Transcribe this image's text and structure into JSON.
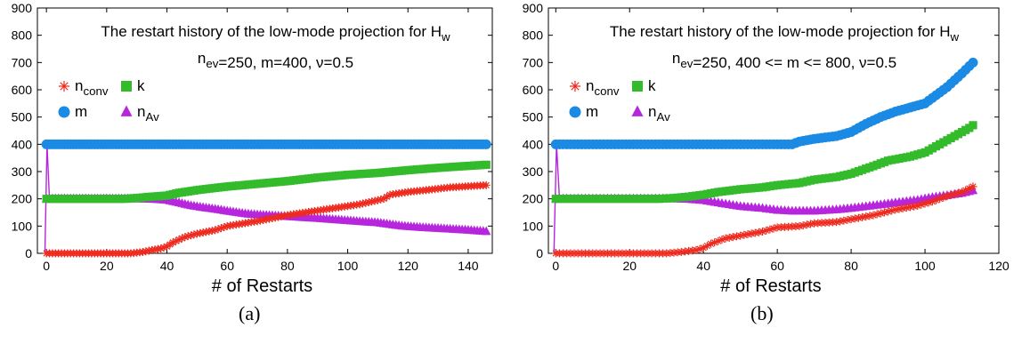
{
  "chart_data": [
    {
      "type": "line",
      "panel_label": "(a)",
      "title": "The restart history of the low-mode projection for H",
      "title_sub": "w",
      "params": {
        "line": "",
        "parts": [
          [
            "n",
            ""
          ],
          [
            "ev",
            "sub"
          ],
          [
            "=250,   m=400,  ",
            ""
          ],
          [
            "ν",
            ""
          ],
          [
            "=0.5",
            ""
          ]
        ]
      },
      "xlabel": "# of Restarts",
      "ylabel": "",
      "xlim": [
        -3,
        148
      ],
      "ylim": [
        0,
        900
      ],
      "xticks": [
        "0",
        "20",
        "40",
        "60",
        "80",
        "100",
        "120",
        "140"
      ],
      "xtick_values": [
        0,
        20,
        40,
        60,
        80,
        100,
        120,
        140
      ],
      "yticks": [
        "0",
        "100",
        "200",
        "300",
        "400",
        "500",
        "600",
        "700",
        "800",
        "900"
      ],
      "ytick_values": [
        0,
        100,
        200,
        300,
        400,
        500,
        600,
        700,
        800,
        900
      ],
      "legend": [
        {
          "key": "nconv",
          "base": "n",
          "sub": "conv",
          "marker": "star",
          "color": "#ee2a1e"
        },
        {
          "key": "k",
          "base": "k",
          "sub": "",
          "marker": "square",
          "color": "#33bb2b"
        },
        {
          "key": "m",
          "base": "m",
          "sub": "",
          "marker": "circle",
          "color": "#1a8ae4"
        },
        {
          "key": "nAv",
          "base": "n",
          "sub": "Av",
          "marker": "triangle",
          "color": "#b626dc"
        }
      ],
      "x_last": 146,
      "series": [
        {
          "name": "n_conv",
          "key": "nconv",
          "points": [
            [
              0,
              0
            ],
            [
              1,
              0
            ],
            [
              28,
              0
            ],
            [
              32,
              5
            ],
            [
              35,
              12
            ],
            [
              38,
              18
            ],
            [
              40,
              25
            ],
            [
              42,
              40
            ],
            [
              44,
              50
            ],
            [
              46,
              60
            ],
            [
              50,
              72
            ],
            [
              56,
              85
            ],
            [
              60,
              100
            ],
            [
              70,
              118
            ],
            [
              80,
              140
            ],
            [
              86,
              150
            ],
            [
              92,
              160
            ],
            [
              98,
              170
            ],
            [
              104,
              180
            ],
            [
              112,
              200
            ],
            [
              114,
              215
            ],
            [
              120,
              225
            ],
            [
              126,
              232
            ],
            [
              134,
              242
            ],
            [
              140,
              246
            ],
            [
              146,
              250
            ]
          ]
        },
        {
          "name": "k",
          "key": "k",
          "points": [
            [
              0,
              200
            ],
            [
              26,
              200
            ],
            [
              30,
              203
            ],
            [
              34,
              207
            ],
            [
              40,
              212
            ],
            [
              44,
              222
            ],
            [
              50,
              232
            ],
            [
              56,
              240
            ],
            [
              60,
              245
            ],
            [
              70,
              255
            ],
            [
              80,
              265
            ],
            [
              90,
              278
            ],
            [
              100,
              288
            ],
            [
              110,
              295
            ],
            [
              120,
              305
            ],
            [
              128,
              312
            ],
            [
              136,
              318
            ],
            [
              146,
              325
            ]
          ]
        },
        {
          "name": "m",
          "key": "m",
          "points": [
            [
              0,
              400
            ],
            [
              146,
              400
            ]
          ]
        },
        {
          "name": "n_Av",
          "key": "nAv",
          "points": [
            [
              0,
              200
            ],
            [
              26,
              200
            ],
            [
              30,
              200
            ],
            [
              36,
              198
            ],
            [
              40,
              195
            ],
            [
              44,
              185
            ],
            [
              48,
              175
            ],
            [
              52,
              168
            ],
            [
              56,
              162
            ],
            [
              60,
              155
            ],
            [
              66,
              145
            ],
            [
              72,
              140
            ],
            [
              80,
              135
            ],
            [
              90,
              128
            ],
            [
              100,
              120
            ],
            [
              110,
              112
            ],
            [
              118,
              100
            ],
            [
              124,
              95
            ],
            [
              132,
              90
            ],
            [
              140,
              85
            ],
            [
              146,
              80
            ]
          ]
        },
        {
          "name": "spike",
          "key": "nAv",
          "points": [
            [
              -0.5,
              0
            ],
            [
              0.2,
              400
            ],
            [
              1,
              200
            ]
          ]
        }
      ]
    },
    {
      "type": "line",
      "panel_label": "(b)",
      "title": "The restart history of the low-mode projection for H",
      "title_sub": "w",
      "params": {
        "parts": [
          [
            "n",
            ""
          ],
          [
            "ev",
            "sub"
          ],
          [
            "=250,  400 <= m <= 800,  ",
            ""
          ],
          [
            "ν",
            ""
          ],
          [
            "=0.5",
            ""
          ]
        ]
      },
      "xlabel": "# of Restarts",
      "ylabel": "",
      "xlim": [
        -2,
        120
      ],
      "ylim": [
        0,
        900
      ],
      "xticks": [
        "0",
        "20",
        "40",
        "60",
        "80",
        "100",
        "120"
      ],
      "xtick_values": [
        0,
        20,
        40,
        60,
        80,
        100,
        120
      ],
      "yticks": [
        "0",
        "100",
        "200",
        "300",
        "400",
        "500",
        "600",
        "700",
        "800",
        "900"
      ],
      "ytick_values": [
        0,
        100,
        200,
        300,
        400,
        500,
        600,
        700,
        800,
        900
      ],
      "legend": [
        {
          "key": "nconv",
          "base": "n",
          "sub": "conv",
          "marker": "star",
          "color": "#ee2a1e"
        },
        {
          "key": "k",
          "base": "k",
          "sub": "",
          "marker": "square",
          "color": "#33bb2b"
        },
        {
          "key": "m",
          "base": "m",
          "sub": "",
          "marker": "circle",
          "color": "#1a8ae4"
        },
        {
          "key": "nAv",
          "base": "n",
          "sub": "Av",
          "marker": "triangle",
          "color": "#b626dc"
        }
      ],
      "x_last": 113,
      "series": [
        {
          "name": "n_conv",
          "key": "nconv",
          "points": [
            [
              0,
              0
            ],
            [
              1,
              0
            ],
            [
              30,
              0
            ],
            [
              34,
              5
            ],
            [
              38,
              12
            ],
            [
              40,
              20
            ],
            [
              42,
              35
            ],
            [
              44,
              45
            ],
            [
              46,
              55
            ],
            [
              50,
              65
            ],
            [
              56,
              80
            ],
            [
              60,
              95
            ],
            [
              66,
              100
            ],
            [
              70,
              110
            ],
            [
              76,
              115
            ],
            [
              80,
              125
            ],
            [
              86,
              140
            ],
            [
              92,
              160
            ],
            [
              98,
              175
            ],
            [
              102,
              190
            ],
            [
              106,
              210
            ],
            [
              110,
              225
            ],
            [
              113,
              245
            ]
          ]
        },
        {
          "name": "k",
          "key": "k",
          "points": [
            [
              0,
              200
            ],
            [
              28,
              200
            ],
            [
              32,
              203
            ],
            [
              36,
              208
            ],
            [
              40,
              215
            ],
            [
              44,
              225
            ],
            [
              50,
              235
            ],
            [
              56,
              242
            ],
            [
              60,
              250
            ],
            [
              66,
              258
            ],
            [
              70,
              270
            ],
            [
              76,
              280
            ],
            [
              80,
              292
            ],
            [
              86,
              320
            ],
            [
              90,
              340
            ],
            [
              96,
              355
            ],
            [
              100,
              370
            ],
            [
              104,
              400
            ],
            [
              108,
              430
            ],
            [
              112,
              460
            ],
            [
              113,
              470
            ]
          ]
        },
        {
          "name": "m",
          "key": "m",
          "points": [
            [
              0,
              400
            ],
            [
              64,
              400
            ],
            [
              66,
              410
            ],
            [
              70,
              420
            ],
            [
              76,
              430
            ],
            [
              80,
              445
            ],
            [
              84,
              475
            ],
            [
              88,
              500
            ],
            [
              92,
              520
            ],
            [
              96,
              535
            ],
            [
              100,
              550
            ],
            [
              102,
              570
            ],
            [
              106,
              610
            ],
            [
              110,
              660
            ],
            [
              113,
              700
            ]
          ]
        },
        {
          "name": "n_Av",
          "key": "nAv",
          "points": [
            [
              0,
              200
            ],
            [
              28,
              200
            ],
            [
              32,
              200
            ],
            [
              36,
              198
            ],
            [
              40,
              194
            ],
            [
              44,
              185
            ],
            [
              50,
              172
            ],
            [
              56,
              165
            ],
            [
              60,
              158
            ],
            [
              64,
              155
            ],
            [
              70,
              155
            ],
            [
              76,
              160
            ],
            [
              80,
              165
            ],
            [
              86,
              175
            ],
            [
              92,
              185
            ],
            [
              98,
              195
            ],
            [
              102,
              205
            ],
            [
              106,
              212
            ],
            [
              110,
              220
            ],
            [
              113,
              230
            ]
          ]
        },
        {
          "name": "spike",
          "key": "nAv",
          "points": [
            [
              -0.5,
              0
            ],
            [
              0.2,
              400
            ],
            [
              1,
              200
            ]
          ]
        }
      ]
    }
  ]
}
